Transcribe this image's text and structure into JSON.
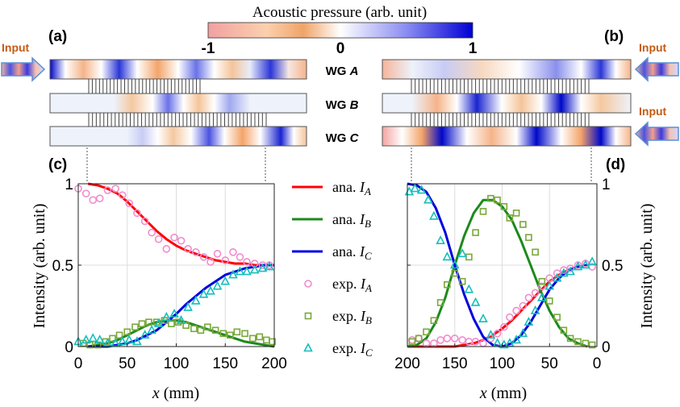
{
  "colorbar": {
    "title": "Acoustic pressure (arb. unit)",
    "ticks": [
      "-1",
      "0",
      "1"
    ],
    "stops": [
      "#f1a1a1",
      "#fbd0ae",
      "#f0a468",
      "#ffffff",
      "#8a8cf1",
      "#0000d4"
    ]
  },
  "panels": {
    "a": {
      "label": "(a)",
      "input": "Input",
      "direction": "left-to-right"
    },
    "b": {
      "label": "(b)",
      "input_top": "Input",
      "input_bottom": "Input",
      "direction": "right-to-left"
    },
    "c": {
      "label": "(c)"
    },
    "d": {
      "label": "(d)"
    }
  },
  "waveguides": {
    "A": {
      "prefix": "WG ",
      "letter": "A"
    },
    "B": {
      "prefix": "WG ",
      "letter": "B"
    },
    "C": {
      "prefix": "WG ",
      "letter": "C"
    }
  },
  "legend": {
    "entries": [
      {
        "prefix": "ana.",
        "symbol": "I",
        "sub": "A",
        "kind": "line",
        "color": "#ff0000"
      },
      {
        "prefix": "ana.",
        "symbol": "I",
        "sub": "B",
        "kind": "line",
        "color": "#1b8a1b"
      },
      {
        "prefix": "ana.",
        "symbol": "I",
        "sub": "C",
        "kind": "line",
        "color": "#0000e0"
      },
      {
        "prefix": "exp.",
        "symbol": "I",
        "sub": "A",
        "kind": "circle",
        "color": "#f08ccd"
      },
      {
        "prefix": "exp.",
        "symbol": "I",
        "sub": "B",
        "kind": "square",
        "color": "#7aa83a"
      },
      {
        "prefix": "exp.",
        "symbol": "I",
        "sub": "C",
        "kind": "triangle",
        "color": "#17bdbd"
      }
    ]
  },
  "chart_data": [
    {
      "type": "line",
      "panel": "c",
      "ylabel": "Intensity (arb. unit)",
      "xlabel_var": "x",
      "xlabel_unit": " (mm)",
      "xlim": [
        0,
        200
      ],
      "ylim": [
        0,
        1
      ],
      "xticks": [
        0,
        50,
        100,
        150,
        200
      ],
      "yticks": [
        0,
        0.5,
        1
      ],
      "ytick_labels": [
        "0",
        "0.5",
        "1"
      ],
      "grid": true,
      "series": [
        {
          "name": "ana. I_A",
          "kind": "line",
          "color": "#ff0000",
          "x": [
            10,
            20,
            30,
            40,
            50,
            60,
            70,
            80,
            90,
            100,
            110,
            120,
            130,
            140,
            150,
            160,
            170,
            180,
            190,
            200
          ],
          "y": [
            1.0,
            0.99,
            0.97,
            0.94,
            0.89,
            0.83,
            0.77,
            0.71,
            0.66,
            0.62,
            0.59,
            0.57,
            0.55,
            0.53,
            0.52,
            0.51,
            0.51,
            0.5,
            0.5,
            0.5
          ]
        },
        {
          "name": "ana. I_B",
          "kind": "line",
          "color": "#1b8a1b",
          "x": [
            10,
            20,
            30,
            40,
            50,
            60,
            70,
            80,
            90,
            100,
            110,
            120,
            130,
            140,
            150,
            160,
            170,
            180,
            190,
            200
          ],
          "y": [
            0.0,
            0.01,
            0.02,
            0.04,
            0.07,
            0.1,
            0.13,
            0.15,
            0.16,
            0.16,
            0.15,
            0.13,
            0.11,
            0.09,
            0.07,
            0.05,
            0.03,
            0.02,
            0.01,
            0.0
          ]
        },
        {
          "name": "ana. I_C",
          "kind": "line",
          "color": "#0000e0",
          "x": [
            10,
            20,
            30,
            40,
            50,
            60,
            70,
            80,
            90,
            100,
            110,
            120,
            130,
            140,
            150,
            160,
            170,
            180,
            190,
            200
          ],
          "y": [
            0.0,
            0.0,
            0.0,
            0.01,
            0.02,
            0.04,
            0.07,
            0.1,
            0.15,
            0.2,
            0.26,
            0.31,
            0.36,
            0.4,
            0.44,
            0.46,
            0.48,
            0.49,
            0.5,
            0.5
          ]
        },
        {
          "name": "exp. I_A",
          "kind": "circle",
          "color": "#f08ccd",
          "x": [
            0,
            8,
            15,
            22,
            30,
            38,
            45,
            52,
            60,
            68,
            75,
            82,
            90,
            98,
            105,
            112,
            120,
            128,
            135,
            142,
            150,
            158,
            165,
            172,
            180,
            188,
            195
          ],
          "y": [
            0.97,
            0.94,
            0.9,
            0.91,
            0.96,
            0.97,
            0.93,
            0.88,
            0.82,
            0.77,
            0.7,
            0.66,
            0.6,
            0.67,
            0.65,
            0.6,
            0.58,
            0.55,
            0.52,
            0.57,
            0.53,
            0.58,
            0.55,
            0.52,
            0.51,
            0.5,
            0.5
          ]
        },
        {
          "name": "exp. I_B",
          "kind": "square",
          "color": "#7aa83a",
          "x": [
            5,
            12,
            20,
            28,
            35,
            42,
            50,
            58,
            65,
            72,
            80,
            88,
            95,
            102,
            110,
            118,
            125,
            132,
            140,
            148,
            155,
            162,
            170,
            178,
            185,
            192,
            198
          ],
          "y": [
            0.02,
            0.01,
            0.01,
            0.03,
            0.05,
            0.07,
            0.09,
            0.12,
            0.14,
            0.15,
            0.15,
            0.16,
            0.14,
            0.15,
            0.13,
            0.11,
            0.1,
            0.12,
            0.1,
            0.08,
            0.07,
            0.09,
            0.08,
            0.05,
            0.06,
            0.04,
            0.03
          ]
        },
        {
          "name": "exp. I_C",
          "kind": "triangle",
          "color": "#17bdbd",
          "x": [
            0,
            8,
            15,
            22,
            30,
            38,
            45,
            52,
            60,
            68,
            75,
            82,
            90,
            98,
            105,
            112,
            120,
            128,
            135,
            142,
            150,
            158,
            165,
            172,
            180,
            188,
            195
          ],
          "y": [
            0.03,
            0.04,
            0.05,
            0.04,
            0.02,
            0.02,
            0.03,
            0.04,
            0.03,
            0.07,
            0.1,
            0.14,
            0.18,
            0.2,
            0.16,
            0.24,
            0.28,
            0.32,
            0.34,
            0.37,
            0.4,
            0.44,
            0.46,
            0.46,
            0.47,
            0.48,
            0.49
          ]
        }
      ]
    },
    {
      "type": "line",
      "panel": "d",
      "ylabel": "Intensity (arb. unit)",
      "xlabel_var": "x",
      "xlabel_unit": " (mm)",
      "xlim": [
        200,
        0
      ],
      "ylim": [
        0,
        1
      ],
      "xticks": [
        200,
        150,
        100,
        50,
        0
      ],
      "yticks": [
        0,
        0.5,
        1
      ],
      "ytick_labels": [
        "0",
        "0.5",
        "1"
      ],
      "grid": true,
      "series": [
        {
          "name": "ana. I_A",
          "kind": "line",
          "color": "#ff0000",
          "x": [
            200,
            190,
            180,
            170,
            160,
            150,
            140,
            130,
            120,
            110,
            100,
            90,
            80,
            70,
            60,
            50,
            40,
            30,
            20,
            10
          ],
          "y": [
            0.0,
            0.0,
            0.0,
            0.0,
            0.0,
            0.0,
            0.01,
            0.02,
            0.04,
            0.07,
            0.11,
            0.16,
            0.22,
            0.28,
            0.34,
            0.4,
            0.44,
            0.47,
            0.49,
            0.5
          ]
        },
        {
          "name": "ana. I_B",
          "kind": "line",
          "color": "#1b8a1b",
          "x": [
            200,
            190,
            180,
            170,
            160,
            150,
            140,
            130,
            120,
            110,
            100,
            90,
            80,
            70,
            60,
            50,
            40,
            30,
            20,
            10
          ],
          "y": [
            0.0,
            0.01,
            0.05,
            0.15,
            0.3,
            0.5,
            0.68,
            0.82,
            0.9,
            0.9,
            0.86,
            0.78,
            0.65,
            0.5,
            0.35,
            0.22,
            0.12,
            0.05,
            0.02,
            0.0
          ]
        },
        {
          "name": "ana. I_C",
          "kind": "line",
          "color": "#0000e0",
          "x": [
            200,
            190,
            180,
            170,
            160,
            150,
            140,
            130,
            120,
            110,
            100,
            90,
            80,
            70,
            60,
            50,
            40,
            30,
            20,
            10
          ],
          "y": [
            1.0,
            0.99,
            0.95,
            0.85,
            0.7,
            0.5,
            0.32,
            0.17,
            0.06,
            0.01,
            0.0,
            0.02,
            0.07,
            0.15,
            0.25,
            0.35,
            0.42,
            0.47,
            0.49,
            0.5
          ]
        },
        {
          "name": "exp. I_A",
          "kind": "circle",
          "color": "#f08ccd",
          "x": [
            195,
            188,
            180,
            172,
            165,
            158,
            150,
            142,
            135,
            128,
            120,
            112,
            105,
            98,
            92,
            85,
            78,
            72,
            65,
            58,
            50,
            42,
            35,
            28,
            20,
            12,
            5
          ],
          "y": [
            0.04,
            0.05,
            0.02,
            0.02,
            0.04,
            0.05,
            0.05,
            0.04,
            0.03,
            0.03,
            0.02,
            0.05,
            0.08,
            0.12,
            0.18,
            0.22,
            0.25,
            0.3,
            0.33,
            0.37,
            0.42,
            0.45,
            0.47,
            0.48,
            0.5,
            0.51,
            0.49
          ]
        },
        {
          "name": "exp. I_B",
          "kind": "square",
          "color": "#7aa83a",
          "x": [
            195,
            188,
            180,
            172,
            165,
            158,
            150,
            142,
            135,
            128,
            120,
            112,
            105,
            98,
            92,
            85,
            78,
            72,
            65,
            58,
            50,
            42,
            35,
            28,
            20,
            12,
            5
          ],
          "y": [
            0.03,
            0.05,
            0.09,
            0.16,
            0.27,
            0.38,
            0.45,
            0.4,
            0.55,
            0.7,
            0.83,
            0.91,
            0.9,
            0.86,
            0.79,
            0.82,
            0.75,
            0.67,
            0.58,
            0.4,
            0.28,
            0.18,
            0.1,
            0.05,
            0.03,
            0.02,
            0.01
          ]
        },
        {
          "name": "exp. I_C",
          "kind": "triangle",
          "color": "#17bdbd",
          "x": [
            198,
            192,
            185,
            178,
            172,
            165,
            158,
            150,
            142,
            135,
            128,
            120,
            112,
            105,
            98,
            92,
            85,
            78,
            72,
            65,
            58,
            50,
            42,
            35,
            28,
            20,
            12,
            5
          ],
          "y": [
            0.95,
            0.97,
            0.96,
            0.9,
            0.8,
            0.65,
            0.55,
            0.5,
            0.57,
            0.35,
            0.27,
            0.17,
            0.07,
            0.02,
            0.01,
            0.02,
            0.04,
            0.08,
            0.15,
            0.22,
            0.3,
            0.37,
            0.42,
            0.45,
            0.46,
            0.49,
            0.5,
            0.52
          ]
        }
      ]
    }
  ]
}
